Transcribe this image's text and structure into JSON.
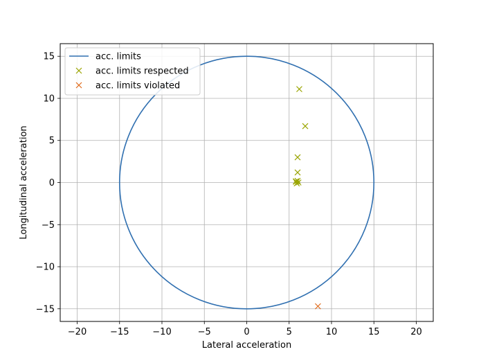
{
  "chart_data": {
    "type": "scatter",
    "xlabel": "Lateral acceleration",
    "ylabel": "Longitudinal acceleration",
    "xlim": [
      -22,
      22
    ],
    "ylim": [
      -16.5,
      16.5
    ],
    "xticks": [
      -20,
      -15,
      -10,
      -5,
      0,
      5,
      10,
      15,
      20
    ],
    "yticks": [
      -15,
      -10,
      -5,
      0,
      5,
      10,
      15
    ],
    "xtick_labels": [
      "−20",
      "−15",
      "−10",
      "−5",
      "0",
      "5",
      "10",
      "15",
      "20"
    ],
    "ytick_labels": [
      "−15",
      "−10",
      "−5",
      "0",
      "5",
      "10",
      "15"
    ],
    "grid": true,
    "legend_position": "top-left",
    "series": [
      {
        "name": "acc. limits",
        "kind": "circle-line",
        "radius": 15,
        "center": [
          0,
          0
        ],
        "color": "#2f6fb0"
      },
      {
        "name": "acc. limits respected",
        "kind": "x-marker",
        "color": "#9aa500",
        "points": [
          [
            6.2,
            11.1
          ],
          [
            6.9,
            6.7
          ],
          [
            6.0,
            3.0
          ],
          [
            6.0,
            1.2
          ],
          [
            6.0,
            0.2
          ],
          [
            5.8,
            0.1
          ],
          [
            6.1,
            0.0
          ],
          [
            5.9,
            -0.1
          ],
          [
            5.8,
            0.15
          ]
        ]
      },
      {
        "name": "acc. limits violated",
        "kind": "x-marker",
        "color": "#e06a1a",
        "points": [
          [
            8.4,
            -14.7
          ]
        ]
      }
    ]
  }
}
